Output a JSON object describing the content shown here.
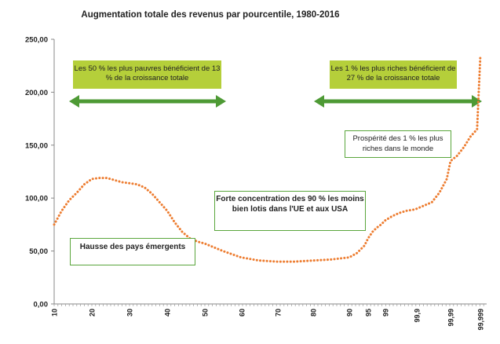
{
  "chart_data": {
    "type": "line",
    "title": "Augmentation totale des revenus par pourcentile, 1980-2016",
    "y_ticks": [
      "0,00",
      "50,00",
      "100,00",
      "150,00",
      "200,00",
      "250,00"
    ],
    "ylim": [
      0,
      250
    ],
    "x_tick_labels": [
      "10",
      "20",
      "30",
      "40",
      "50",
      "60",
      "70",
      "80",
      "90",
      "95",
      "99",
      "99,9",
      "99,99",
      "99,999"
    ],
    "series": [
      {
        "x": [
          "10",
          "12",
          "14",
          "16",
          "18",
          "20",
          "22",
          "24",
          "26",
          "28",
          "30",
          "32",
          "34",
          "36",
          "38",
          "40",
          "42",
          "44",
          "46",
          "48",
          "50",
          "55",
          "60",
          "65",
          "70",
          "75",
          "80",
          "85",
          "90",
          "92",
          "94",
          "95",
          "96",
          "97",
          "98",
          "99",
          "99,2",
          "99,4",
          "99,6",
          "99,8",
          "99,9",
          "99,92",
          "99,94",
          "99,96",
          "99,98",
          "99,99",
          "99,992",
          "99,994",
          "99,996",
          "99,998",
          "99,999"
        ],
        "values": [
          75,
          88,
          98,
          105,
          113,
          118,
          119,
          119,
          117,
          115,
          114,
          113,
          110,
          104,
          96,
          88,
          77,
          68,
          62,
          59,
          57,
          50,
          44,
          41,
          40,
          40,
          41,
          42,
          44,
          48,
          55,
          62,
          68,
          72,
          75,
          79,
          83,
          86,
          88,
          89,
          90,
          93,
          96,
          105,
          118,
          135,
          140,
          148,
          158,
          165,
          235
        ]
      }
    ],
    "annotations": {
      "bottom50": "Les 50 % les plus pauvres bénéficient de 13 % de la croissance  totale",
      "top1": "Les 1 % les plus riches bénéficient de 27 % de la croissance totale",
      "prosperity": "Prospérité des 1 % les plus riches dans le monde",
      "concentration": "Forte concentration des 90 % les moins bien lotis dans l'UE et aux USA",
      "emerging": "Hausse des pays émergents"
    },
    "colors": {
      "series": "#ed7d31",
      "arrow": "#4e9a35",
      "green_box": "#b5cf3a",
      "box_border": "#5aa63c"
    },
    "grid": false,
    "legend": "none"
  }
}
